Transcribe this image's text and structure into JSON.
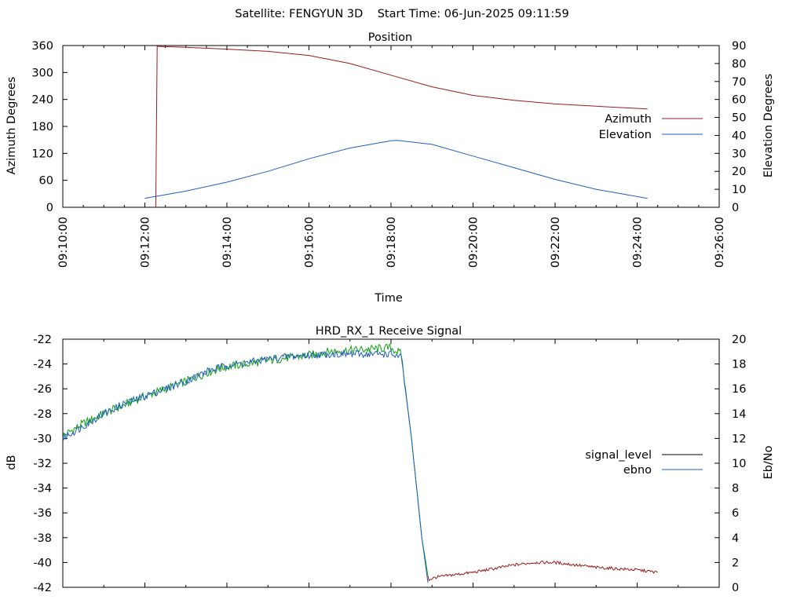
{
  "header": {
    "title": "Satellite: FENGYUN 3D    Start Time: 06-Jun-2025 09:11:59"
  },
  "colors": {
    "azimuth": "#9b1b1b",
    "elevation": "#1f5fbf",
    "signal_level_legend": "#000000",
    "ebno": "#1f5fbf",
    "signal_trace_green": "#11a011",
    "signal_trace_red": "#9b1b1b",
    "axes": "#000000"
  },
  "chart_data": [
    {
      "type": "line",
      "title": "Position",
      "xlabel": "Time",
      "ylabel": "Azimuth Degrees",
      "y2label": "Elevation Degrees",
      "x_ticks": [
        "09:10:00",
        "09:12:00",
        "09:14:00",
        "09:16:00",
        "09:18:00",
        "09:20:00",
        "09:22:00",
        "09:24:00",
        "09:26:00"
      ],
      "xlim": [
        "09:10:00",
        "09:26:00"
      ],
      "ylim": [
        0,
        360
      ],
      "y_ticks": [
        0,
        60,
        120,
        180,
        240,
        300,
        360
      ],
      "y2lim": [
        0,
        90
      ],
      "y2_ticks": [
        0,
        10,
        20,
        30,
        40,
        50,
        60,
        70,
        80,
        90
      ],
      "legend_position": "right",
      "series": [
        {
          "name": "Azimuth",
          "axis": "y",
          "color": "#9b1b1b",
          "x": [
            "09:12:16",
            "09:12:18",
            "09:12:20",
            "09:13:00",
            "09:14:00",
            "09:15:00",
            "09:16:00",
            "09:17:00",
            "09:18:00",
            "09:19:00",
            "09:20:00",
            "09:21:00",
            "09:22:00",
            "09:23:00",
            "09:24:15"
          ],
          "values": [
            0,
            359,
            358,
            356,
            352,
            347,
            338,
            320,
            294,
            268,
            249,
            238,
            230,
            225,
            219
          ]
        },
        {
          "name": "Elevation",
          "axis": "y2",
          "color": "#1f5fbf",
          "x": [
            "09:12:00",
            "09:13:00",
            "09:14:00",
            "09:15:00",
            "09:16:00",
            "09:17:00",
            "09:18:00",
            "09:18:10",
            "09:19:00",
            "09:20:00",
            "09:21:00",
            "09:22:00",
            "09:23:00",
            "09:24:15"
          ],
          "values": [
            5,
            9,
            14,
            20,
            27,
            33,
            37,
            37.2,
            35,
            28.5,
            22,
            15.5,
            10,
            5
          ]
        }
      ]
    },
    {
      "type": "line",
      "title": "HRD_RX_1 Receive Signal",
      "ylabel": "dB",
      "y2label": "Eb/No",
      "xlim": [
        "09:10:00",
        "09:26:00"
      ],
      "ylim": [
        -42,
        -22
      ],
      "y_ticks": [
        -42,
        -40,
        -38,
        -36,
        -34,
        -32,
        -30,
        -28,
        -26,
        -24,
        -22
      ],
      "y2lim": [
        0,
        20
      ],
      "y2_ticks": [
        0,
        2,
        4,
        6,
        8,
        10,
        12,
        14,
        16,
        18,
        20
      ],
      "legend_position": "right",
      "series": [
        {
          "name": "signal_level",
          "axis": "y",
          "color": "#000000",
          "x": [
            "09:10:00",
            "09:10:30",
            "09:11:00",
            "09:11:30",
            "09:12:00",
            "09:12:30",
            "09:13:00",
            "09:13:30",
            "09:14:00",
            "09:14:30",
            "09:15:00",
            "09:15:30",
            "09:16:00",
            "09:16:30",
            "09:17:00",
            "09:17:30",
            "09:18:00",
            "09:18:15",
            "09:18:30",
            "09:18:45",
            "09:18:55",
            "09:19:05",
            "09:19:30",
            "09:20:00",
            "09:20:30",
            "09:21:00",
            "09:21:30",
            "09:22:00",
            "09:22:30",
            "09:23:00",
            "09:23:30",
            "09:24:00",
            "09:24:30"
          ],
          "values": [
            -29.8,
            -28.8,
            -28.0,
            -27.3,
            -26.6,
            -26.0,
            -25.4,
            -24.7,
            -24.2,
            -24.0,
            -23.7,
            -23.5,
            -23.3,
            -23.0,
            -22.9,
            -22.8,
            -22.7,
            -23.2,
            -30.0,
            -38.0,
            -41.4,
            -41.2,
            -41.0,
            -40.8,
            -40.5,
            -40.2,
            -40.0,
            -40.0,
            -40.2,
            -40.4,
            -40.5,
            -40.6,
            -40.8
          ]
        },
        {
          "name": "ebno",
          "axis": "y2",
          "color": "#1f5fbf",
          "x": [
            "09:10:00",
            "09:10:30",
            "09:11:00",
            "09:11:30",
            "09:12:00",
            "09:12:30",
            "09:13:00",
            "09:13:30",
            "09:14:00",
            "09:14:30",
            "09:15:00",
            "09:15:30",
            "09:16:00",
            "09:16:30",
            "09:17:00",
            "09:17:30",
            "09:18:00",
            "09:18:15",
            "09:18:30",
            "09:18:45",
            "09:18:55"
          ],
          "values": [
            12.0,
            13.0,
            14.0,
            14.8,
            15.4,
            16.0,
            16.6,
            17.4,
            17.9,
            18.1,
            18.4,
            18.6,
            18.7,
            18.8,
            18.8,
            18.8,
            18.8,
            18.5,
            12.0,
            4.0,
            0.0
          ]
        }
      ]
    }
  ]
}
